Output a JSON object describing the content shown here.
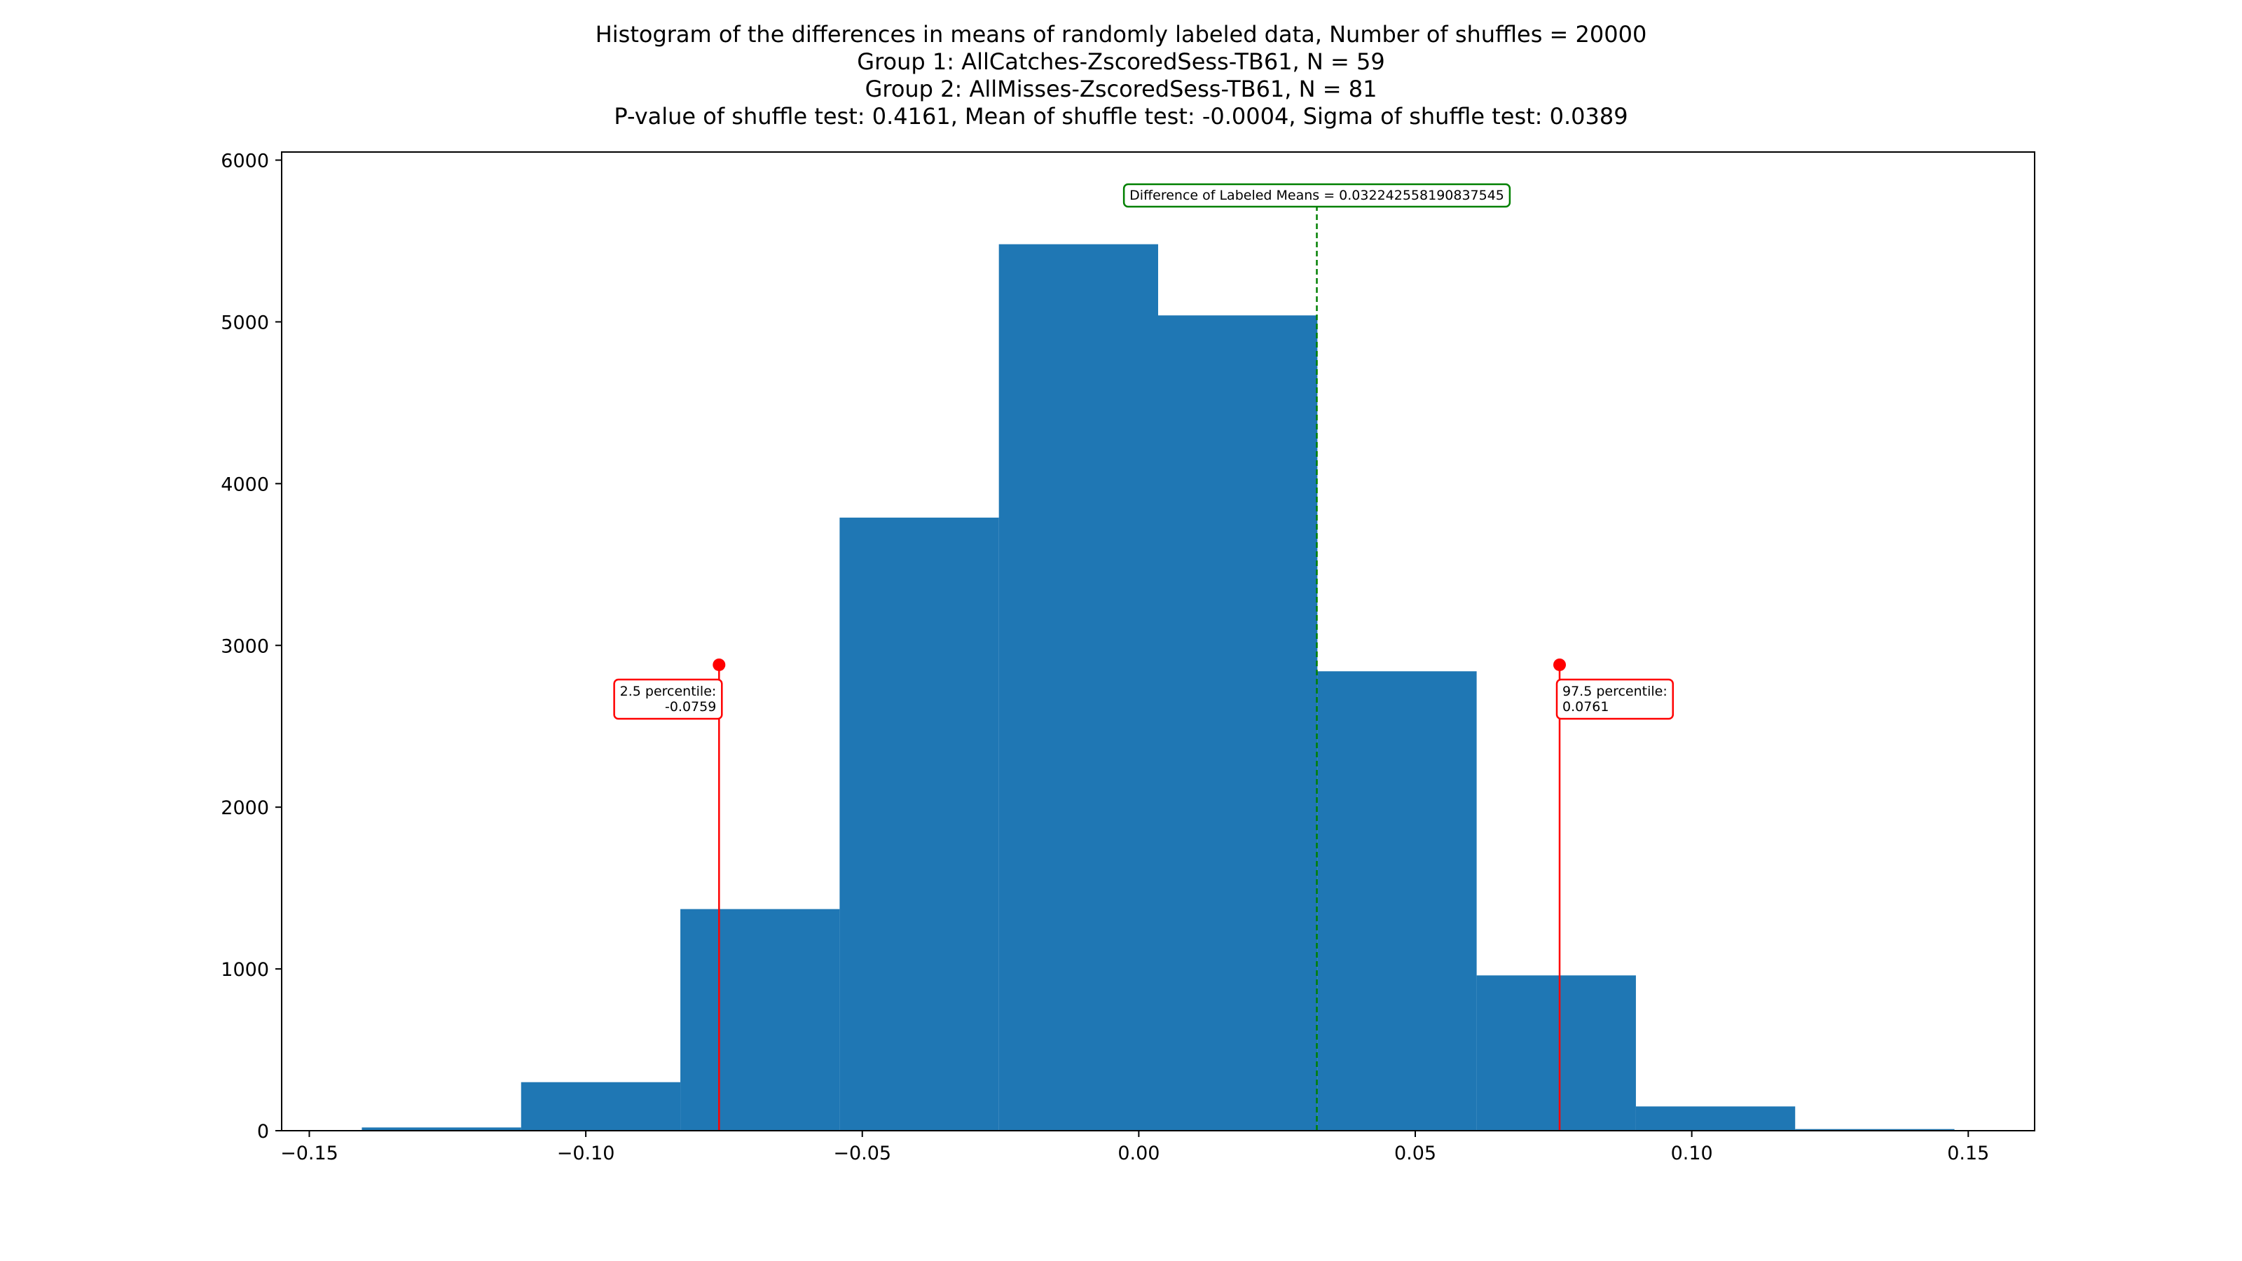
{
  "chart_data": {
    "type": "bar",
    "title_lines": [
      "Histogram of the differences in means of randomly labeled data, Number of shuffles = 20000",
      "Group 1: AllCatches-ZscoredSess-TB61, N = 59",
      "Group 2: AllMisses-ZscoredSess-TB61, N = 81",
      "P-value of shuffle test: 0.4161, Mean of shuffle test: -0.0004, Sigma of shuffle test: 0.0389"
    ],
    "xlabel": "",
    "ylabel": "",
    "xlim": [
      -0.155,
      0.162
    ],
    "ylim": [
      0,
      6050
    ],
    "xticks": [
      -0.15,
      -0.1,
      -0.05,
      0.0,
      0.05,
      0.1,
      0.15
    ],
    "xtick_labels": [
      "−0.15",
      "−0.10",
      "−0.05",
      "0.00",
      "0.05",
      "0.10",
      "0.15"
    ],
    "yticks": [
      0,
      1000,
      2000,
      3000,
      4000,
      5000,
      6000
    ],
    "ytick_labels": [
      "0",
      "1000",
      "2000",
      "3000",
      "4000",
      "5000",
      "6000"
    ],
    "bin_edges": [
      -0.1405,
      -0.1117,
      -0.0829,
      -0.0541,
      -0.0253,
      0.0035,
      0.0323,
      0.0611,
      0.0899,
      0.1187,
      0.1475
    ],
    "values": [
      20,
      300,
      1370,
      3790,
      5480,
      5040,
      2840,
      960,
      150,
      10
    ],
    "bar_color": "#1f77b4",
    "grid": false,
    "annotations": {
      "observed": {
        "x": 0.0322,
        "y_top": 5720,
        "label": "Difference of Labeled Means = 0.032242558190837545",
        "color": "#008000"
      },
      "low_percentile": {
        "x": -0.0759,
        "y_top": 2880,
        "label_lines": [
          "2.5 percentile:",
          "-0.0759"
        ],
        "color": "#ff0000"
      },
      "high_percentile": {
        "x": 0.0761,
        "y_top": 2880,
        "label_lines": [
          "97.5 percentile:",
          "0.0761"
        ],
        "color": "#ff0000"
      }
    }
  }
}
